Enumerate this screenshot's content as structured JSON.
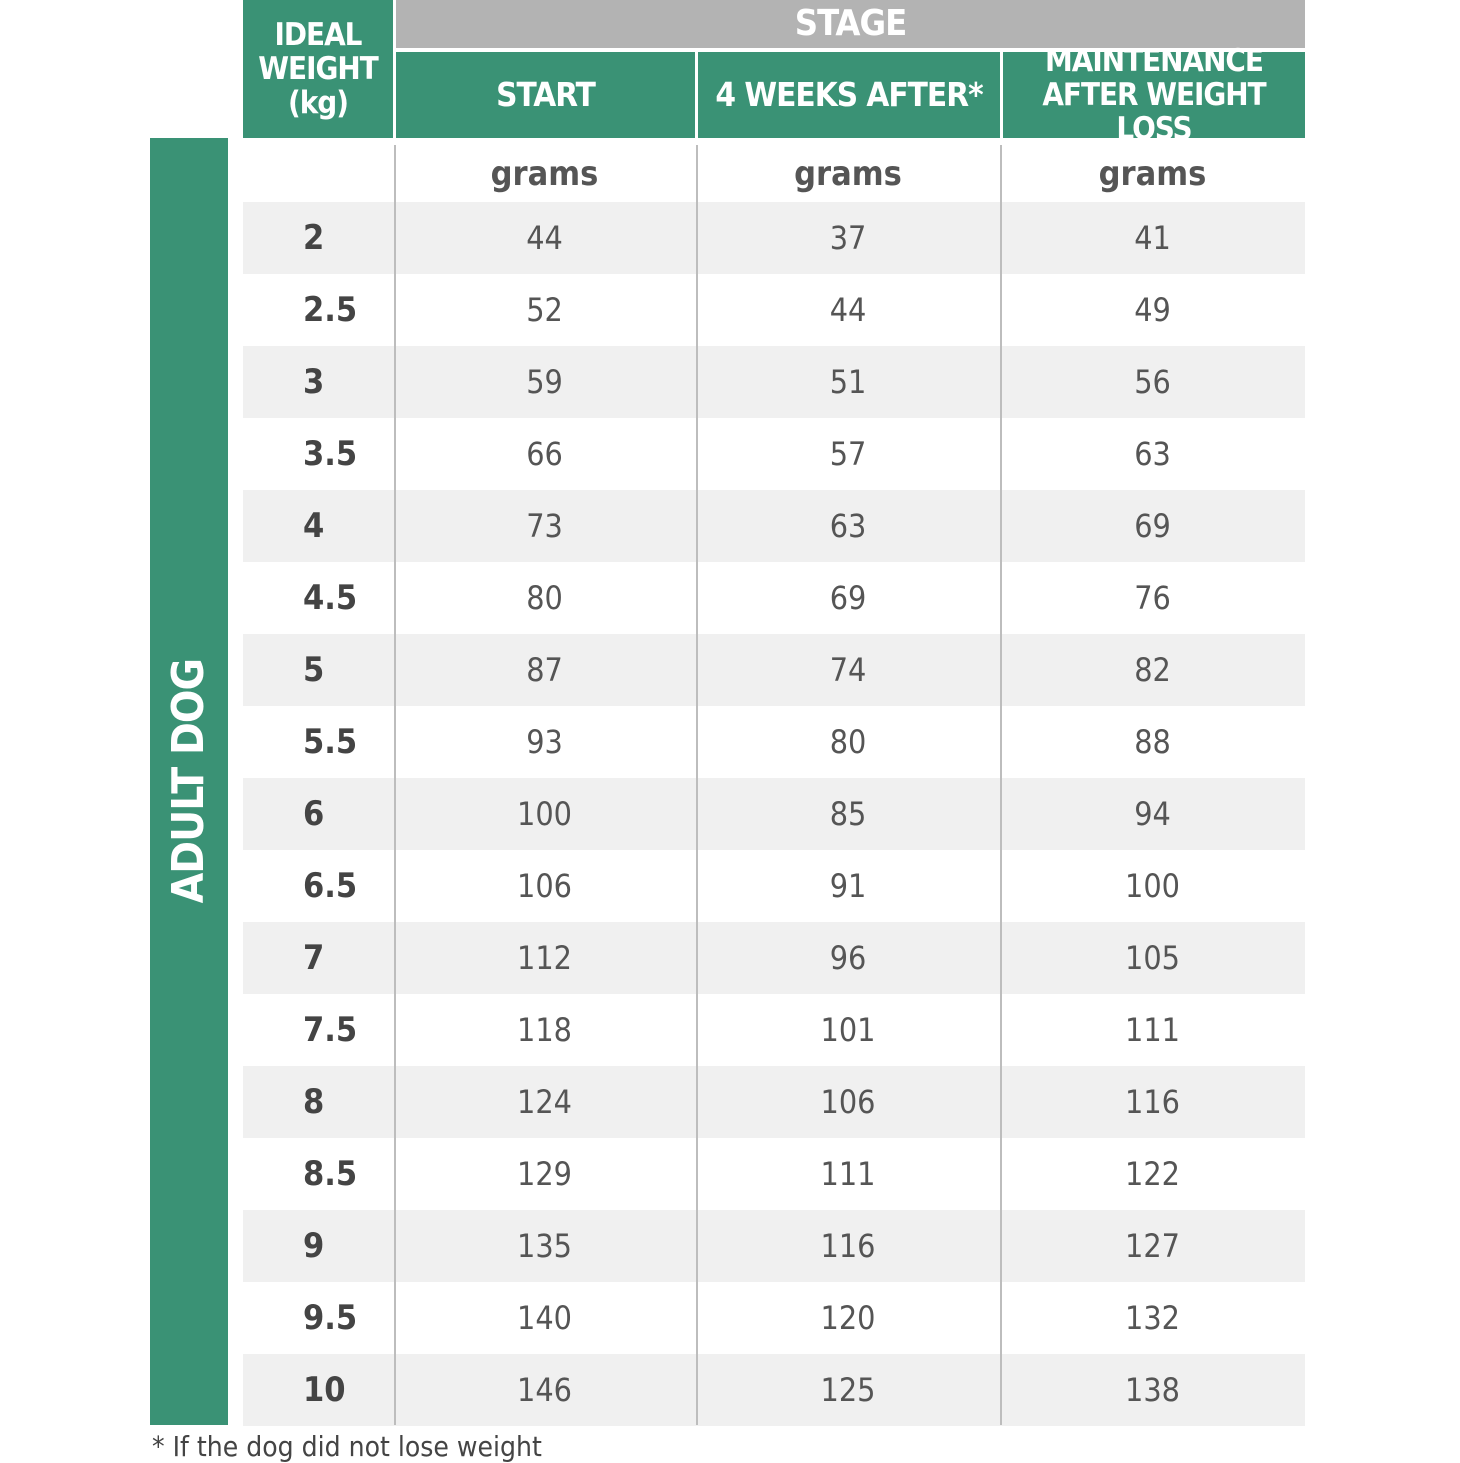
{
  "header": {
    "ideal_weight": "IDEAL WEIGHT (kg)",
    "stage": "STAGE",
    "columns": [
      "START",
      "4 WEEKS AFTER*",
      "MAINTENANCE AFTER WEIGHT LOSS"
    ],
    "unit": "grams"
  },
  "side_label": "ADULT DOG",
  "colors": {
    "green": "#3a9275",
    "gray": "#b3b3b3",
    "stripe": "#f0f0f0"
  },
  "rows": [
    [
      "2",
      "44",
      "37",
      "41"
    ],
    [
      "2.5",
      "52",
      "44",
      "49"
    ],
    [
      "3",
      "59",
      "51",
      "56"
    ],
    [
      "3.5",
      "66",
      "57",
      "63"
    ],
    [
      "4",
      "73",
      "63",
      "69"
    ],
    [
      "4.5",
      "80",
      "69",
      "76"
    ],
    [
      "5",
      "87",
      "74",
      "82"
    ],
    [
      "5.5",
      "93",
      "80",
      "88"
    ],
    [
      "6",
      "100",
      "85",
      "94"
    ],
    [
      "6.5",
      "106",
      "91",
      "100"
    ],
    [
      "7",
      "112",
      "96",
      "105"
    ],
    [
      "7.5",
      "118",
      "101",
      "111"
    ],
    [
      "8",
      "124",
      "106",
      "116"
    ],
    [
      "8.5",
      "129",
      "111",
      "122"
    ],
    [
      "9",
      "135",
      "116",
      "127"
    ],
    [
      "9.5",
      "140",
      "120",
      "132"
    ],
    [
      "10",
      "146",
      "125",
      "138"
    ]
  ],
  "footnote": "* If the dog did not lose weight"
}
